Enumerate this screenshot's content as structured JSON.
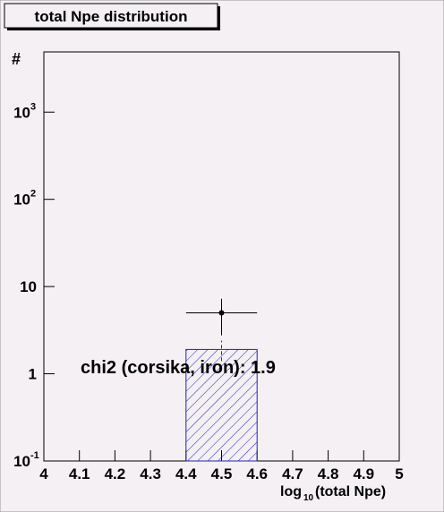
{
  "chart_data": {
    "type": "histogram",
    "title": "total Npe distribution",
    "ylabel": "#",
    "xlabel_parts": [
      "log",
      "10",
      "(total Npe)"
    ],
    "annotation": "chi2 (corsika, iron): 1.9",
    "xlim": [
      4,
      5
    ],
    "ylim": [
      0.1,
      4900
    ],
    "log_y": true,
    "xticks": [
      4,
      4.1,
      4.2,
      4.3,
      4.4,
      4.5,
      4.6,
      4.7,
      4.8,
      4.9,
      5
    ],
    "yticks": [
      {
        "value": 0.1,
        "label": "10",
        "exponent": "-1"
      },
      {
        "value": 1,
        "label": "1"
      },
      {
        "value": 10,
        "label": "10"
      },
      {
        "value": 100,
        "label": "10",
        "exponent": "2"
      },
      {
        "value": 1000,
        "label": "10",
        "exponent": "3"
      }
    ],
    "series": [
      {
        "kind": "hist",
        "color": "#2222bb",
        "bins": [
          4.4,
          4.6
        ],
        "values": [
          1.9
        ],
        "errors": [
          0.5
        ]
      },
      {
        "kind": "points",
        "color": "#000000",
        "x": [
          4.5
        ],
        "values": [
          5
        ],
        "xerr": [
          0.1
        ],
        "yerr": [
          2.24
        ]
      }
    ]
  }
}
